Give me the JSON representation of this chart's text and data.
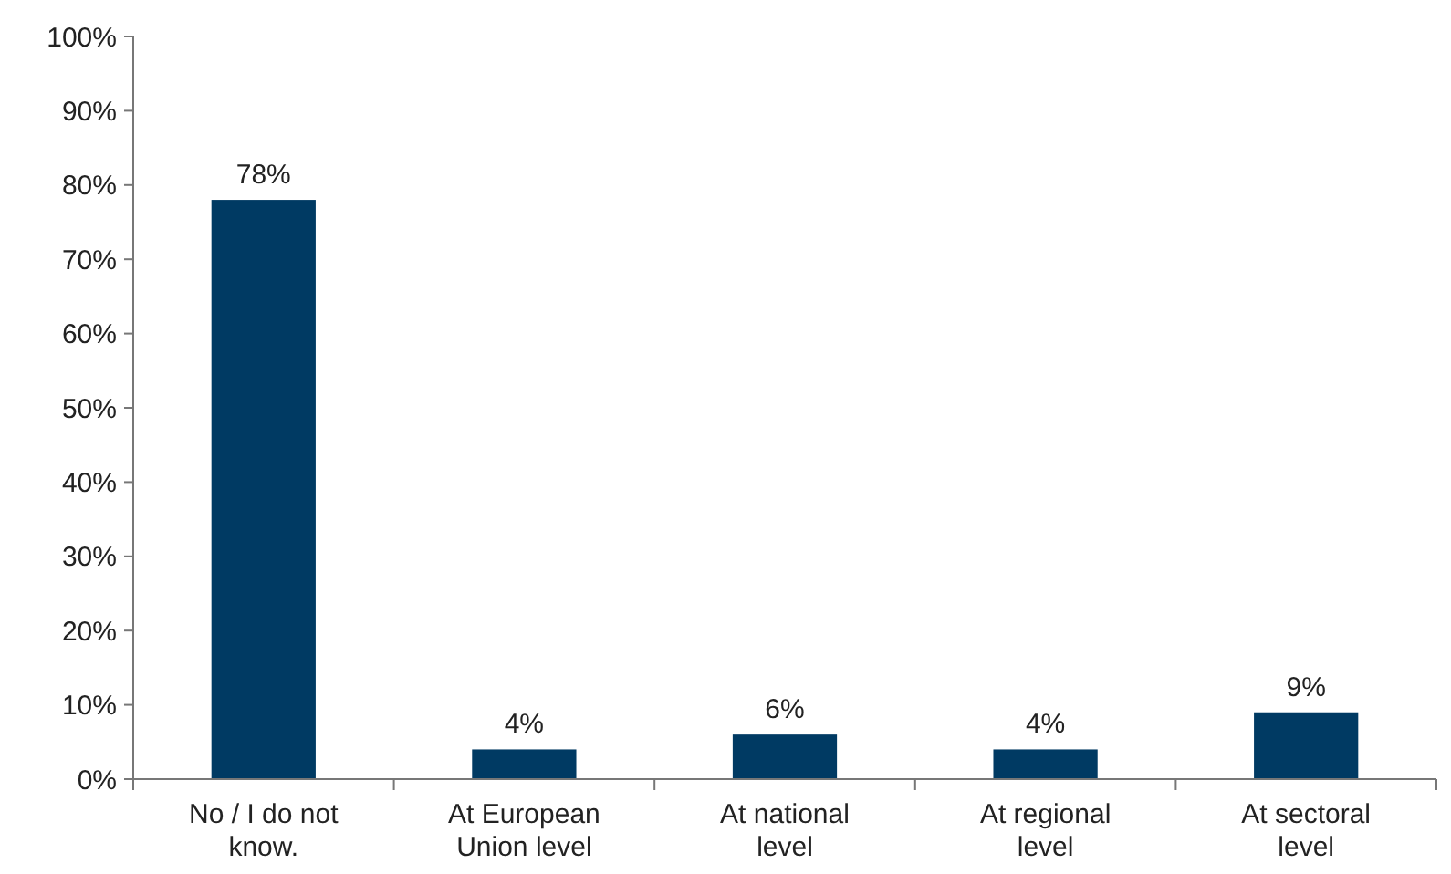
{
  "chart_data": {
    "type": "bar",
    "categories": [
      "No / I do not know.",
      "At European Union level",
      "At national level",
      "At regional level",
      "At sectoral level"
    ],
    "values": [
      78,
      4,
      6,
      4,
      9
    ],
    "value_labels": [
      "78%",
      "4%",
      "6%",
      "4%",
      "9%"
    ],
    "color": "#003a63",
    "ylim": [
      0,
      100
    ],
    "yticks": [
      {
        "value": 0,
        "label": "0%"
      },
      {
        "value": 10,
        "label": "10%"
      },
      {
        "value": 20,
        "label": "20%"
      },
      {
        "value": 30,
        "label": "30%"
      },
      {
        "value": 40,
        "label": "40%"
      },
      {
        "value": 50,
        "label": "50%"
      },
      {
        "value": 60,
        "label": "60%"
      },
      {
        "value": 70,
        "label": "70%"
      },
      {
        "value": 80,
        "label": "80%"
      },
      {
        "value": 90,
        "label": "90%"
      },
      {
        "value": 100,
        "label": "100%"
      }
    ],
    "grid": false
  }
}
